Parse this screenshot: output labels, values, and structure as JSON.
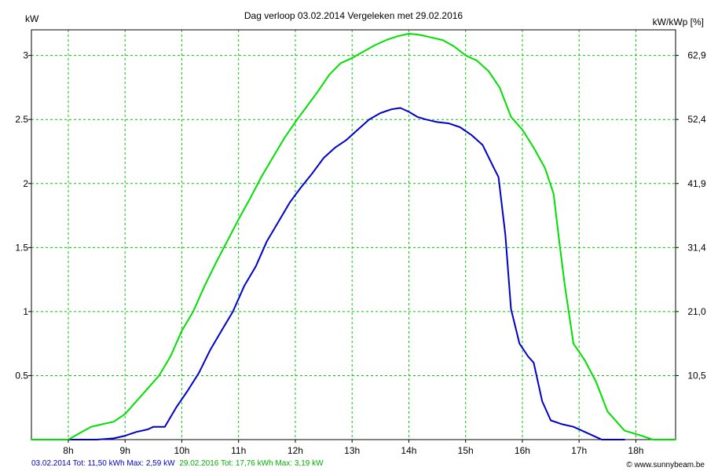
{
  "chart_data": {
    "type": "line",
    "title": "Dag  verloop 03.02.2014   Vergeleken met 29.02.2016",
    "ylabel_left": "kW",
    "ylabel_right": "kW/kWp [%]",
    "xlim": [
      7.35,
      18.7
    ],
    "ylim": [
      0,
      3.2
    ],
    "grid": true,
    "x_ticks": [
      {
        "value": 8,
        "label": "8h"
      },
      {
        "value": 9,
        "label": "9h"
      },
      {
        "value": 10,
        "label": "10h"
      },
      {
        "value": 11,
        "label": "11h"
      },
      {
        "value": 12,
        "label": "12h"
      },
      {
        "value": 13,
        "label": "13h"
      },
      {
        "value": 14,
        "label": "14h"
      },
      {
        "value": 15,
        "label": "15h"
      },
      {
        "value": 16,
        "label": "16h"
      },
      {
        "value": 17,
        "label": "17h"
      },
      {
        "value": 18,
        "label": "18h"
      }
    ],
    "y_ticks_left": [
      {
        "value": 0.5,
        "label": "0.5"
      },
      {
        "value": 1,
        "label": "1"
      },
      {
        "value": 1.5,
        "label": "1.5"
      },
      {
        "value": 2,
        "label": "2"
      },
      {
        "value": 2.5,
        "label": "2.5"
      },
      {
        "value": 3,
        "label": "3"
      }
    ],
    "y_ticks_right": [
      {
        "value": 0.5,
        "label": "10,5"
      },
      {
        "value": 1,
        "label": "21,0"
      },
      {
        "value": 1.5,
        "label": "31,4"
      },
      {
        "value": 2,
        "label": "41,9"
      },
      {
        "value": 2.5,
        "label": "52,4"
      },
      {
        "value": 3,
        "label": "62,9"
      }
    ],
    "series": [
      {
        "color": "#0000cc",
        "points": [
          [
            7.9,
            0
          ],
          [
            8.5,
            0
          ],
          [
            8.8,
            0.01
          ],
          [
            9.0,
            0.03
          ],
          [
            9.2,
            0.06
          ],
          [
            9.4,
            0.08
          ],
          [
            9.5,
            0.1
          ],
          [
            9.7,
            0.1
          ],
          [
            9.9,
            0.25
          ],
          [
            10.1,
            0.38
          ],
          [
            10.3,
            0.52
          ],
          [
            10.5,
            0.7
          ],
          [
            10.7,
            0.85
          ],
          [
            10.9,
            1.0
          ],
          [
            11.1,
            1.2
          ],
          [
            11.3,
            1.35
          ],
          [
            11.5,
            1.55
          ],
          [
            11.7,
            1.7
          ],
          [
            11.9,
            1.85
          ],
          [
            12.1,
            1.97
          ],
          [
            12.3,
            2.08
          ],
          [
            12.5,
            2.2
          ],
          [
            12.7,
            2.28
          ],
          [
            12.9,
            2.34
          ],
          [
            13.1,
            2.42
          ],
          [
            13.3,
            2.5
          ],
          [
            13.5,
            2.55
          ],
          [
            13.7,
            2.58
          ],
          [
            13.85,
            2.59
          ],
          [
            14.0,
            2.56
          ],
          [
            14.15,
            2.52
          ],
          [
            14.3,
            2.5
          ],
          [
            14.5,
            2.48
          ],
          [
            14.7,
            2.47
          ],
          [
            14.9,
            2.44
          ],
          [
            15.1,
            2.38
          ],
          [
            15.3,
            2.3
          ],
          [
            15.5,
            2.12
          ],
          [
            15.58,
            2.05
          ],
          [
            15.7,
            1.6
          ],
          [
            15.8,
            1.02
          ],
          [
            15.95,
            0.75
          ],
          [
            16.1,
            0.65
          ],
          [
            16.2,
            0.6
          ],
          [
            16.35,
            0.3
          ],
          [
            16.5,
            0.15
          ],
          [
            16.7,
            0.12
          ],
          [
            16.9,
            0.1
          ],
          [
            17.1,
            0.06
          ],
          [
            17.4,
            0
          ],
          [
            17.8,
            0
          ]
        ]
      },
      {
        "color": "#00e000",
        "points": [
          [
            7.35,
            0
          ],
          [
            8.0,
            0
          ],
          [
            8.2,
            0.05
          ],
          [
            8.4,
            0.1
          ],
          [
            8.6,
            0.12
          ],
          [
            8.8,
            0.14
          ],
          [
            9.0,
            0.2
          ],
          [
            9.2,
            0.3
          ],
          [
            9.4,
            0.4
          ],
          [
            9.6,
            0.5
          ],
          [
            9.8,
            0.65
          ],
          [
            10.0,
            0.85
          ],
          [
            10.2,
            1.0
          ],
          [
            10.4,
            1.2
          ],
          [
            10.6,
            1.38
          ],
          [
            10.8,
            1.55
          ],
          [
            11.0,
            1.72
          ],
          [
            11.2,
            1.88
          ],
          [
            11.4,
            2.05
          ],
          [
            11.6,
            2.2
          ],
          [
            11.8,
            2.35
          ],
          [
            12.0,
            2.48
          ],
          [
            12.2,
            2.6
          ],
          [
            12.4,
            2.72
          ],
          [
            12.6,
            2.85
          ],
          [
            12.8,
            2.94
          ],
          [
            13.0,
            2.98
          ],
          [
            13.2,
            3.03
          ],
          [
            13.4,
            3.08
          ],
          [
            13.6,
            3.12
          ],
          [
            13.8,
            3.15
          ],
          [
            14.0,
            3.17
          ],
          [
            14.2,
            3.16
          ],
          [
            14.4,
            3.14
          ],
          [
            14.6,
            3.12
          ],
          [
            14.8,
            3.07
          ],
          [
            15.0,
            3.0
          ],
          [
            15.2,
            2.96
          ],
          [
            15.4,
            2.88
          ],
          [
            15.6,
            2.75
          ],
          [
            15.8,
            2.52
          ],
          [
            16.0,
            2.42
          ],
          [
            16.2,
            2.28
          ],
          [
            16.4,
            2.12
          ],
          [
            16.55,
            1.92
          ],
          [
            16.65,
            1.55
          ],
          [
            16.75,
            1.2
          ],
          [
            16.9,
            0.75
          ],
          [
            17.1,
            0.62
          ],
          [
            17.3,
            0.45
          ],
          [
            17.5,
            0.22
          ],
          [
            17.8,
            0.07
          ],
          [
            18.1,
            0.03
          ],
          [
            18.3,
            0
          ],
          [
            18.7,
            0
          ]
        ]
      }
    ],
    "footer": [
      {
        "text": "03.02.2014 Tot: 11,50 kWh Max: 2,59 kW",
        "color": "#0000cc"
      },
      {
        "text": "29.02.2016 Tot: 17,76 kWh Max: 3,19 kW",
        "color": "#00b000"
      }
    ],
    "credit": "© www.sunnybeam.be"
  }
}
